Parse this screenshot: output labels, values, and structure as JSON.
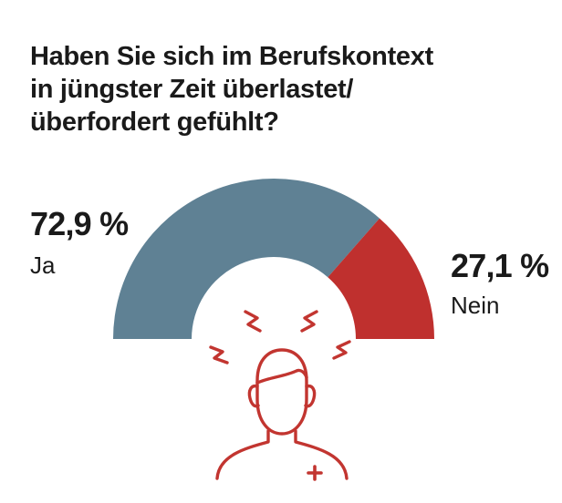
{
  "chart_data": {
    "type": "pie",
    "variant": "semicircle-donut",
    "title_lines": [
      "Haben Sie sich im Berufskontext",
      "in jüngster Zeit überlastet/",
      "überfordert gefühlt?"
    ],
    "series": [
      {
        "name": "Ja",
        "value": 72.9,
        "label": "72,9 %",
        "color": "#5f8194"
      },
      {
        "name": "Nein",
        "value": 27.1,
        "label": "27,1 %",
        "color": "#bf302e"
      }
    ]
  },
  "icon": {
    "name": "stressed-person-icon",
    "color": "#c23530"
  }
}
